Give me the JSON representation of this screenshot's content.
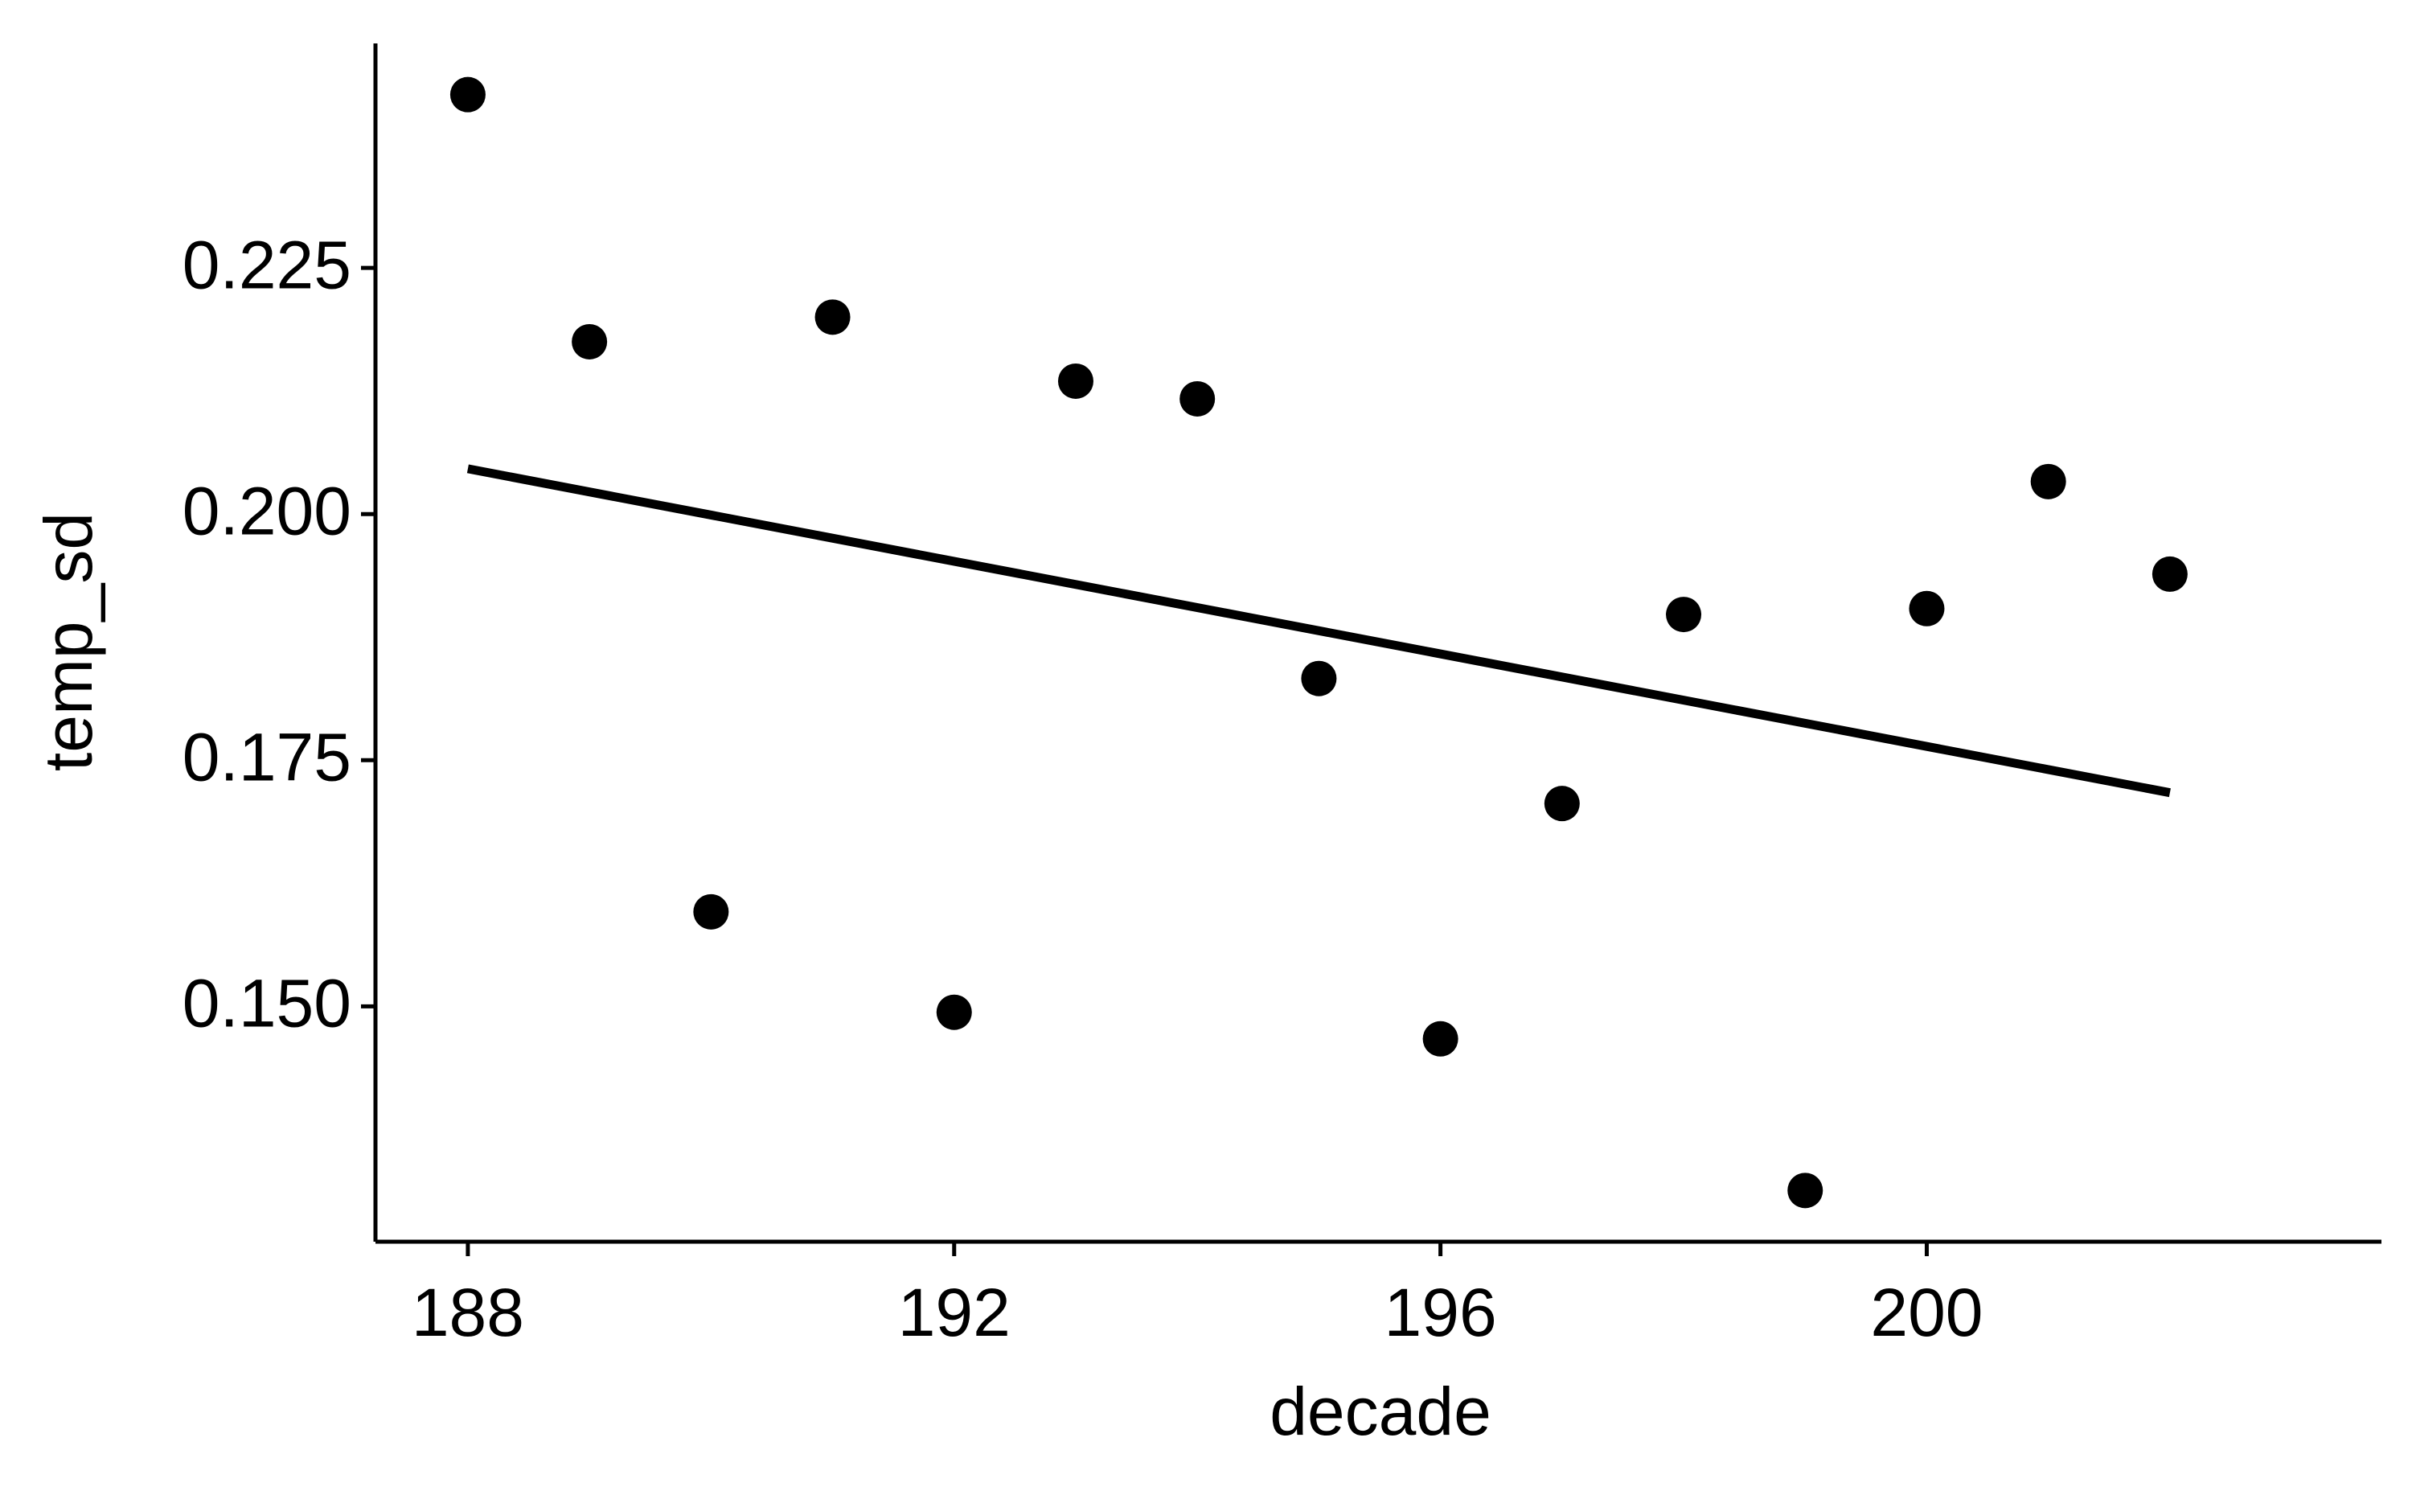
{
  "chart_data": {
    "type": "scatter",
    "x_label": "decade",
    "y_label": "temp_sd",
    "x": [
      188,
      189,
      190,
      191,
      192,
      193,
      194,
      195,
      196,
      197,
      198,
      199,
      200,
      201,
      202
    ],
    "values": [
      0.2426,
      0.2175,
      0.1596,
      0.22,
      0.1494,
      0.2135,
      0.2117,
      0.1833,
      0.1467,
      0.1706,
      0.1898,
      0.1313,
      0.1904,
      0.2033,
      0.1939
    ],
    "color": "#000000",
    "trend": {
      "x": [
        188,
        202
      ],
      "values": [
        0.2046,
        0.1717
      ],
      "color": "#000000"
    },
    "xlim": [
      187.24,
      203.74
    ],
    "xticks": [
      188,
      192,
      196,
      200
    ],
    "ylim": [
      0.1261,
      0.2478
    ],
    "yticks": [
      {
        "value": 0.15,
        "label": "0.150"
      },
      0.175,
      {
        "value": 0.2,
        "label": "0.200"
      },
      0.225
    ],
    "grid": false
  }
}
